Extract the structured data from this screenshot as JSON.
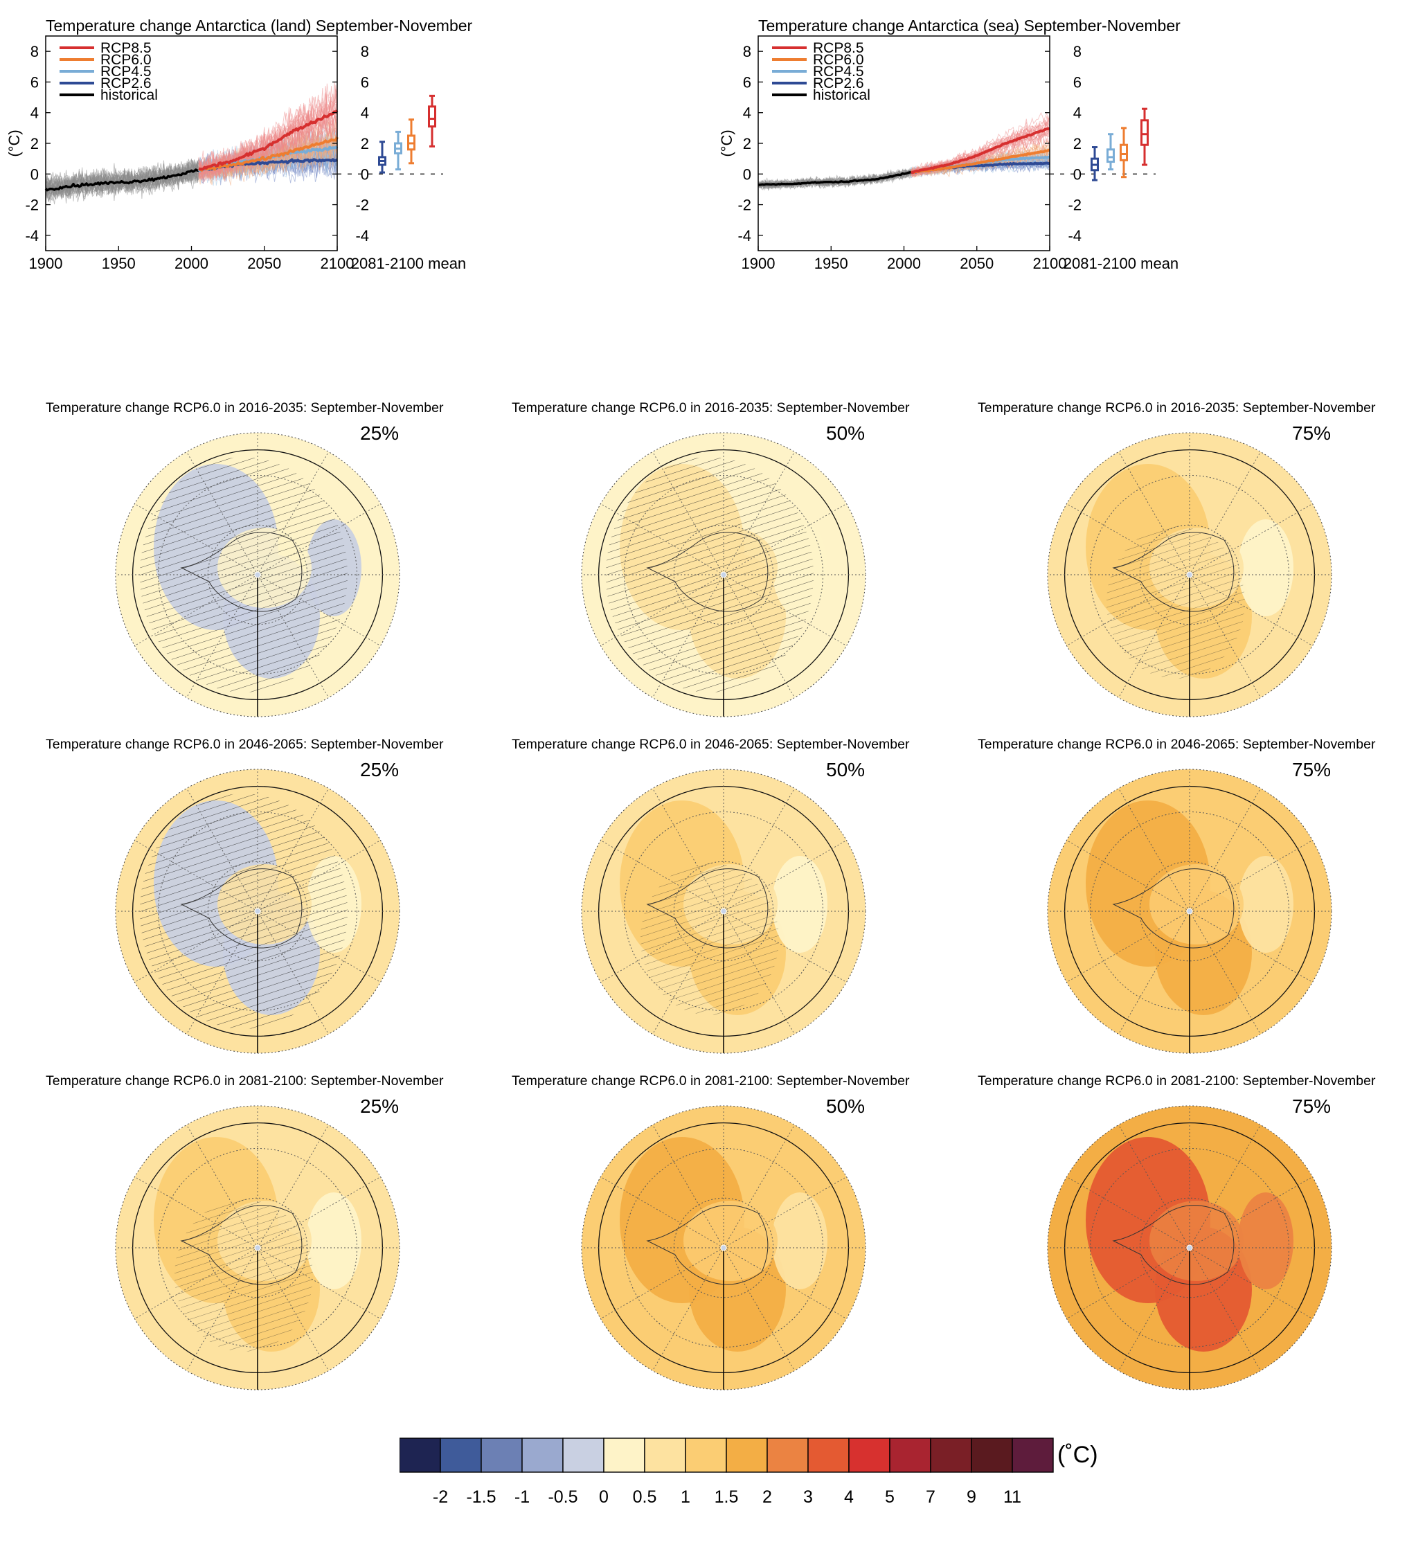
{
  "chart_data": [
    {
      "type": "line",
      "id": "land",
      "title": "Temperature change Antarctica (land) September-November",
      "ylabel": "(°C)",
      "xlim": [
        1900,
        2100
      ],
      "ylim": [
        -5,
        9
      ],
      "xticks": [
        1900,
        1950,
        2000,
        2050,
        2100
      ],
      "yticks": [
        -4,
        -2,
        0,
        2,
        4,
        6,
        8
      ],
      "box_label": "2081-2100 mean",
      "legend": [
        "RCP8.5",
        "RCP6.0",
        "RCP4.5",
        "RCP2.6",
        "historical"
      ],
      "legend_position": "top-left",
      "series": [
        {
          "name": "historical",
          "x": [
            1900,
            1920,
            1940,
            1960,
            1980,
            2005
          ],
          "values": [
            -1.0,
            -0.75,
            -0.6,
            -0.5,
            -0.25,
            0.25
          ]
        },
        {
          "name": "RCP2.6",
          "x": [
            2005,
            2030,
            2050,
            2070,
            2100
          ],
          "values": [
            0.25,
            0.6,
            0.75,
            0.85,
            0.9
          ]
        },
        {
          "name": "RCP4.5",
          "x": [
            2005,
            2030,
            2050,
            2070,
            2100
          ],
          "values": [
            0.25,
            0.7,
            1.0,
            1.4,
            1.7
          ]
        },
        {
          "name": "RCP6.0",
          "x": [
            2005,
            2030,
            2050,
            2070,
            2100
          ],
          "values": [
            0.25,
            0.65,
            1.0,
            1.5,
            2.3
          ]
        },
        {
          "name": "RCP8.5",
          "x": [
            2005,
            2030,
            2050,
            2070,
            2100
          ],
          "values": [
            0.3,
            0.9,
            1.7,
            2.8,
            4.1
          ]
        }
      ],
      "boxes": [
        {
          "name": "RCP2.6",
          "min": 0.1,
          "q1": 0.6,
          "median": 0.85,
          "q3": 1.1,
          "max": 2.1
        },
        {
          "name": "RCP4.5",
          "min": 0.3,
          "q1": 1.35,
          "median": 1.65,
          "q3": 2.0,
          "max": 2.75
        },
        {
          "name": "RCP6.0",
          "min": 0.7,
          "q1": 1.6,
          "median": 2.0,
          "q3": 2.5,
          "max": 3.55
        },
        {
          "name": "RCP8.5",
          "min": 1.8,
          "q1": 3.1,
          "median": 3.6,
          "q3": 4.4,
          "max": 5.1
        }
      ]
    },
    {
      "type": "line",
      "id": "sea",
      "title": "Temperature change Antarctica (sea) September-November",
      "ylabel": "(°C)",
      "xlim": [
        1900,
        2100
      ],
      "ylim": [
        -5,
        9
      ],
      "xticks": [
        1900,
        1950,
        2000,
        2050,
        2100
      ],
      "yticks": [
        -4,
        -2,
        0,
        2,
        4,
        6,
        8
      ],
      "box_label": "2081-2100 mean",
      "legend": [
        "RCP8.5",
        "RCP6.0",
        "RCP4.5",
        "RCP2.6",
        "historical"
      ],
      "legend_position": "top-left",
      "series": [
        {
          "name": "historical",
          "x": [
            1900,
            1920,
            1940,
            1960,
            1980,
            2005
          ],
          "values": [
            -0.7,
            -0.65,
            -0.55,
            -0.5,
            -0.35,
            0.1
          ]
        },
        {
          "name": "RCP2.6",
          "x": [
            2005,
            2030,
            2050,
            2070,
            2100
          ],
          "values": [
            0.1,
            0.4,
            0.55,
            0.65,
            0.7
          ]
        },
        {
          "name": "RCP4.5",
          "x": [
            2005,
            2030,
            2050,
            2070,
            2100
          ],
          "values": [
            0.1,
            0.45,
            0.7,
            0.95,
            1.1
          ]
        },
        {
          "name": "RCP6.0",
          "x": [
            2005,
            2030,
            2050,
            2070,
            2100
          ],
          "values": [
            0.1,
            0.4,
            0.7,
            1.05,
            1.55
          ]
        },
        {
          "name": "RCP8.5",
          "x": [
            2005,
            2030,
            2050,
            2070,
            2100
          ],
          "values": [
            0.1,
            0.6,
            1.2,
            2.0,
            3.0
          ]
        }
      ],
      "boxes": [
        {
          "name": "RCP2.6",
          "min": -0.4,
          "q1": 0.25,
          "median": 0.6,
          "q3": 1.0,
          "max": 1.75
        },
        {
          "name": "RCP4.5",
          "min": 0.3,
          "q1": 0.8,
          "median": 1.1,
          "q3": 1.6,
          "max": 2.6
        },
        {
          "name": "RCP6.0",
          "min": -0.2,
          "q1": 0.9,
          "median": 1.3,
          "q3": 1.9,
          "max": 3.0
        },
        {
          "name": "RCP8.5",
          "min": 0.6,
          "q1": 1.9,
          "median": 2.6,
          "q3": 3.5,
          "max": 4.25
        }
      ]
    },
    {
      "type": "heatmap",
      "id": "maps",
      "maps": [
        {
          "title": "Temperature change RCP6.0 in 2016-2035: September-November",
          "percentile": "25%",
          "base_level": 0.25,
          "anomalies": [
            -0.5,
            -0.5,
            -0.25
          ]
        },
        {
          "title": "Temperature change RCP6.0 in 2016-2035: September-November",
          "percentile": "50%",
          "base_level": 0.25,
          "anomalies": [
            0.75,
            0.75,
            0.25
          ]
        },
        {
          "title": "Temperature change RCP6.0 in 2016-2035: September-November",
          "percentile": "75%",
          "base_level": 0.75,
          "anomalies": [
            1.25,
            1.25,
            0.25
          ]
        },
        {
          "title": "Temperature change RCP6.0 in 2046-2065: September-November",
          "percentile": "25%",
          "base_level": 0.75,
          "anomalies": [
            -0.25,
            -0.25,
            0.25
          ]
        },
        {
          "title": "Temperature change RCP6.0 in 2046-2065: September-November",
          "percentile": "50%",
          "base_level": 0.75,
          "anomalies": [
            1.25,
            1.25,
            0.25
          ]
        },
        {
          "title": "Temperature change RCP6.0 in 2046-2065: September-November",
          "percentile": "75%",
          "base_level": 1.25,
          "anomalies": [
            1.75,
            1.75,
            0.75
          ]
        },
        {
          "title": "Temperature change RCP6.0 in 2081-2100: September-November",
          "percentile": "25%",
          "base_level": 0.75,
          "anomalies": [
            1.25,
            1.25,
            0.25
          ]
        },
        {
          "title": "Temperature change RCP6.0 in 2081-2100: September-November",
          "percentile": "50%",
          "base_level": 1.25,
          "anomalies": [
            1.75,
            1.75,
            0.75
          ]
        },
        {
          "title": "Temperature change RCP6.0 in 2081-2100: September-November",
          "percentile": "75%",
          "base_level": 1.75,
          "anomalies": [
            3.5,
            3.5,
            2.5
          ]
        }
      ]
    }
  ],
  "colorbar": {
    "unit": "(˚C)",
    "labels": [
      "-2",
      "-1.5",
      "-1",
      "-0.5",
      "0",
      "0.5",
      "1",
      "1.5",
      "2",
      "3",
      "4",
      "5",
      "7",
      "9",
      "11"
    ],
    "bounds": [
      -2,
      -1.5,
      -1,
      -0.5,
      0,
      0.5,
      1,
      1.5,
      2,
      3,
      4,
      5,
      7,
      9,
      11
    ],
    "colors": [
      "#1e2452",
      "#3f5b9a",
      "#6c80b4",
      "#9aa9cf",
      "#c9d0e2",
      "#fef3c8",
      "#fde2a0",
      "#fbcd73",
      "#f3ae45",
      "#eb8342",
      "#e45a32",
      "#d7312f",
      "#a92430",
      "#7a1f26",
      "#5a1a1f",
      "#5e1c3c"
    ]
  },
  "colors": {
    "RCP8.5": "#d62f2f",
    "RCP6.0": "#ee7d30",
    "RCP4.5": "#79acd6",
    "RCP2.6": "#2e4a94",
    "historical": "#000000"
  }
}
